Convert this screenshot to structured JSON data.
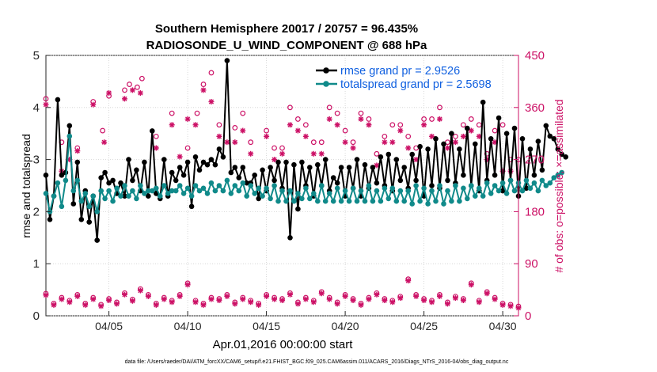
{
  "chart_data": {
    "type": "line",
    "title_line1": "Southern Hemisphere 20017 / 20757 = 96.435%",
    "title_line2": "RADIOSONDE_U_WIND_COMPONENT @ 688 hPa",
    "xlabel": "Apr.01,2016 00:00:00 start",
    "ylabel_left": "rmse and totalspread",
    "ylabel_right": "# of obs: o=possible; ×=assimilated",
    "footer": "data file: /Users/raeder/DAI/ATM_forcXX/CAM6_setup/f.e21.FHIST_BGC.f09_025.CAM6assim.011/ACARS_2016/Diags_NTrS_2016-04/obs_diag_output.nc",
    "xlim": [
      1,
      31
    ],
    "ylim_left": [
      0,
      5
    ],
    "ylim_right": [
      0,
      450
    ],
    "x_ticks": [
      5,
      10,
      15,
      20,
      25,
      30
    ],
    "x_tick_labels": [
      "04/05",
      "04/10",
      "04/15",
      "04/20",
      "04/25",
      "04/30"
    ],
    "y_ticks_left": [
      0,
      1,
      2,
      3,
      4,
      5
    ],
    "y_ticks_right": [
      0,
      90,
      180,
      270,
      360,
      450
    ],
    "colors": {
      "rmse": "#000000",
      "spread": "#108a8a",
      "obs": "#cc1166",
      "legend_text": "#1060e0"
    },
    "series": [
      {
        "name": "rmse",
        "legend": "rmse grand pr = 2.9526",
        "x_start": 1.0,
        "x_step": 0.25,
        "values": [
          2.7,
          1.85,
          2.3,
          4.15,
          2.7,
          2.75,
          3.65,
          2.15,
          2.95,
          1.85,
          2.4,
          1.8,
          2.3,
          1.45,
          2.65,
          2.75,
          2.55,
          2.6,
          2.35,
          2.55,
          2.3,
          3.0,
          2.6,
          2.8,
          2.4,
          2.95,
          2.3,
          3.55,
          2.35,
          2.25,
          3.0,
          2.3,
          2.75,
          2.6,
          2.85,
          2.7,
          2.95,
          2.1,
          3.05,
          2.8,
          2.95,
          2.9,
          3.0,
          2.9,
          3.2,
          3.05,
          4.9,
          2.75,
          2.85,
          2.65,
          2.85,
          2.55,
          2.55,
          2.7,
          2.25,
          2.8,
          2.4,
          2.85,
          2.6,
          2.95,
          2.45,
          2.95,
          1.5,
          2.9,
          2.05,
          2.95,
          2.5,
          2.85,
          2.3,
          2.9,
          2.5,
          3.0,
          2.4,
          2.65,
          2.55,
          2.85,
          2.3,
          2.85,
          2.45,
          3.0,
          2.3,
          2.9,
          2.45,
          2.85,
          2.55,
          3.05,
          2.5,
          3.1,
          2.4,
          3.0,
          2.6,
          2.85,
          2.45,
          3.1,
          2.6,
          3.25,
          2.3,
          3.2,
          2.5,
          3.4,
          2.45,
          3.3,
          2.6,
          3.5,
          2.55,
          3.2,
          2.7,
          3.6,
          2.5,
          3.3,
          2.4,
          4.1,
          2.6,
          3.4,
          2.7,
          3.8,
          2.4,
          3.5,
          2.6,
          3.6,
          2.3,
          3.4,
          2.45,
          3.2,
          2.7,
          3.35,
          2.8,
          3.65,
          3.45,
          3.4,
          3.2,
          3.1,
          3.05
        ]
      },
      {
        "name": "totalspread",
        "legend": "totalspread grand pr = 2.5698",
        "x_start": 1.0,
        "x_step": 0.25,
        "values": [
          2.35,
          2.0,
          2.3,
          2.55,
          2.1,
          2.6,
          3.45,
          2.4,
          2.6,
          2.2,
          2.35,
          2.1,
          2.3,
          2.0,
          2.4,
          2.25,
          2.4,
          2.2,
          2.45,
          2.3,
          2.5,
          2.3,
          2.4,
          2.25,
          2.5,
          2.35,
          2.4,
          2.4,
          2.45,
          2.3,
          2.5,
          2.35,
          2.4,
          2.4,
          2.5,
          2.35,
          2.45,
          2.3,
          2.5,
          2.4,
          2.45,
          2.35,
          2.55,
          2.4,
          2.5,
          2.4,
          2.6,
          2.35,
          2.5,
          2.4,
          2.55,
          2.3,
          2.5,
          2.35,
          2.45,
          2.3,
          2.45,
          2.25,
          2.5,
          2.2,
          2.4,
          2.2,
          2.4,
          2.2,
          2.35,
          2.25,
          2.45,
          2.25,
          2.35,
          2.2,
          2.5,
          2.2,
          2.35,
          2.2,
          2.45,
          2.2,
          2.4,
          2.2,
          2.45,
          2.2,
          2.4,
          2.2,
          2.5,
          2.2,
          2.4,
          2.2,
          2.45,
          2.25,
          2.45,
          2.2,
          2.4,
          2.2,
          2.4,
          2.15,
          2.5,
          2.2,
          2.45,
          2.15,
          2.4,
          2.2,
          2.5,
          2.15,
          2.4,
          2.2,
          2.5,
          2.2,
          2.45,
          2.25,
          2.5,
          2.3,
          2.45,
          2.3,
          2.55,
          2.35,
          2.5,
          2.4,
          2.55,
          2.35,
          2.6,
          2.4,
          2.55,
          2.4,
          2.6,
          2.45,
          2.55,
          2.4,
          2.6,
          2.5,
          2.55,
          2.65,
          2.7,
          2.75
        ]
      },
      {
        "name": "obs_possible_high",
        "marker": "o",
        "x": [
          1.0,
          2.0,
          3.0,
          4.0,
          4.6,
          5.0,
          6.0,
          6.3,
          6.8,
          7.1,
          8.0,
          9.0,
          10.0,
          10.6,
          11.0,
          11.5,
          12.0,
          13.0,
          13.5,
          14.0,
          15.0,
          15.5,
          16.0,
          16.5,
          17.0,
          17.5,
          18.0,
          18.5,
          19.0,
          19.5,
          20.0,
          20.5,
          21.0,
          21.5,
          22.0,
          22.5,
          23.0,
          23.5,
          24.0,
          24.5,
          25.0,
          25.5,
          26.0,
          26.5,
          27.0,
          27.5,
          28.0,
          28.5,
          29.0,
          29.5,
          30.0,
          30.5,
          31.0
        ],
        "values": [
          375,
          300,
          290,
          370,
          320,
          380,
          390,
          400,
          395,
          410,
          310,
          350,
          290,
          350,
          400,
          420,
          330,
          325,
          350,
          300,
          320,
          290,
          290,
          360,
          340,
          330,
          300,
          300,
          360,
          350,
          320,
          300,
          350,
          340,
          280,
          310,
          330,
          330,
          310,
          290,
          340,
          340,
          360,
          300,
          310,
          330,
          340,
          330,
          280,
          320,
          330,
          270,
          270
        ]
      },
      {
        "name": "obs_assimilated_high",
        "marker": "x",
        "x": [
          1.0,
          2.0,
          2.5,
          3.0,
          4.0,
          4.7,
          5.0,
          6.0,
          6.5,
          7.0,
          8.0,
          9.0,
          9.5,
          10.0,
          10.5,
          11.0,
          11.5,
          12.0,
          12.5,
          13.0,
          13.5,
          14.0,
          15.0,
          15.5,
          16.0,
          16.5,
          17.0,
          17.5,
          18.0,
          18.5,
          19.0,
          19.5,
          20.0,
          20.5,
          21.0,
          21.5,
          22.0,
          22.5,
          23.0,
          23.5,
          24.0,
          24.5,
          25.0,
          25.5,
          26.0,
          26.5,
          27.0,
          27.5,
          28.0,
          28.5,
          29.0,
          29.5,
          30.0,
          30.5
        ],
        "values": [
          365,
          250,
          270,
          285,
          365,
          300,
          385,
          375,
          390,
          385,
          290,
          330,
          275,
          340,
          330,
          390,
          370,
          310,
          300,
          300,
          320,
          280,
          310,
          270,
          280,
          330,
          320,
          310,
          280,
          280,
          340,
          330,
          300,
          290,
          340,
          330,
          260,
          300,
          300,
          320,
          290,
          270,
          330,
          310,
          340,
          290,
          300,
          310,
          320,
          310,
          270,
          300,
          250,
          250
        ]
      },
      {
        "name": "obs_low",
        "marker": "o+x",
        "x": [
          1.0,
          1.5,
          2.0,
          2.5,
          3.0,
          3.5,
          4.0,
          4.5,
          5.0,
          5.5,
          6.0,
          6.5,
          7.0,
          7.5,
          8.0,
          8.5,
          9.0,
          9.5,
          10.0,
          10.5,
          11.0,
          11.5,
          12.0,
          12.5,
          13.0,
          13.5,
          14.0,
          14.5,
          15.0,
          15.5,
          16.0,
          16.5,
          17.0,
          17.5,
          18.0,
          18.5,
          19.0,
          19.5,
          20.0,
          20.5,
          21.0,
          21.5,
          22.0,
          22.5,
          23.0,
          23.5,
          24.0,
          24.5,
          25.0,
          25.5,
          26.0,
          26.5,
          27.0,
          27.5,
          28.0,
          28.5,
          29.0,
          29.5,
          30.0,
          30.5,
          31.0
        ],
        "values": [
          37,
          20,
          30,
          25,
          35,
          20,
          30,
          18,
          28,
          22,
          38,
          27,
          45,
          35,
          20,
          30,
          25,
          35,
          55,
          25,
          20,
          30,
          28,
          35,
          22,
          30,
          25,
          20,
          35,
          30,
          28,
          38,
          22,
          30,
          25,
          40,
          30,
          22,
          35,
          28,
          20,
          30,
          38,
          28,
          25,
          32,
          62,
          35,
          28,
          25,
          35,
          22,
          32,
          28,
          55,
          25,
          40,
          30,
          20,
          18,
          15
        ]
      }
    ]
  }
}
